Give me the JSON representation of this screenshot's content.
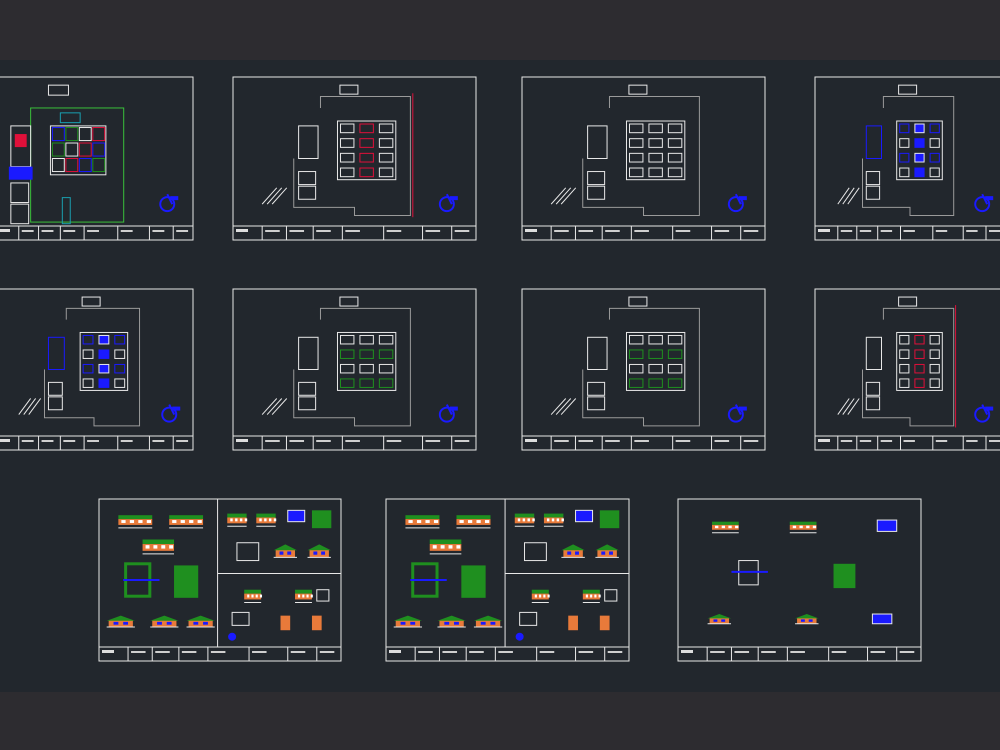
{
  "viewport": {
    "background_color": "#22272d",
    "frame_color": "#2d2c30",
    "sheet_border_color": "#e8e8e8"
  },
  "layer_colors": {
    "walls": "#f2f2f2",
    "site": "#9a9a9a",
    "blue": "#1a1aff",
    "green": "#1f8f1f",
    "red": "#e0103a",
    "cyan": "#1aa0b0",
    "orange": "#e87a3a",
    "vegetation": "#3ac03a"
  },
  "sheets": [
    {
      "kind": "site-plan",
      "accent": "mixed"
    },
    {
      "kind": "floor-plan",
      "accent": "red"
    },
    {
      "kind": "floor-plan",
      "accent": "white"
    },
    {
      "kind": "floor-plan",
      "accent": "blue"
    },
    {
      "kind": "floor-plan",
      "accent": "blue"
    },
    {
      "kind": "floor-plan",
      "accent": "green"
    },
    {
      "kind": "floor-plan",
      "accent": "green"
    },
    {
      "kind": "floor-plan",
      "accent": "red"
    },
    {
      "kind": "elevations",
      "accent": "orange"
    },
    {
      "kind": "elevations",
      "accent": "orange"
    },
    {
      "kind": "elevations-simple",
      "accent": "orange"
    }
  ]
}
